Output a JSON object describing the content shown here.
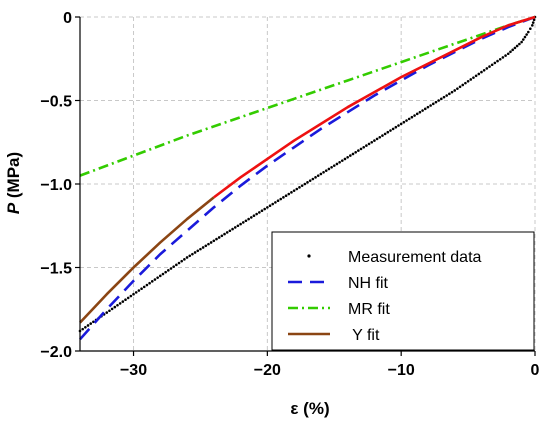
{
  "chart_data": {
    "type": "line",
    "xlabel": "ε (%)",
    "ylabel_italic": "P",
    "ylabel_unit": " (MPa)",
    "xlim": [
      -34,
      0
    ],
    "ylim": [
      -2.0,
      0
    ],
    "x_ticks": [
      -30,
      -20,
      -10,
      0
    ],
    "x_tick_labels": [
      "−30",
      "−20",
      "−10",
      "0"
    ],
    "y_ticks": [
      0,
      -0.5,
      -1.0,
      -1.5,
      -2.0
    ],
    "y_tick_labels": [
      "0",
      "−0.5",
      "−1.0",
      "−1.5",
      "−2.0"
    ],
    "grid": true,
    "legend_position": "bottom-right",
    "series": [
      {
        "name": "Measurement data",
        "style": "dotted-markers",
        "color": "#000000",
        "x": [
          -34,
          -32,
          -30,
          -28,
          -26,
          -24,
          -22,
          -20,
          -18,
          -16,
          -14,
          -12,
          -10,
          -8,
          -6,
          -4,
          -2,
          -1,
          -0.5,
          -0.2,
          0
        ],
        "y": [
          -1.88,
          -1.77,
          -1.66,
          -1.55,
          -1.44,
          -1.34,
          -1.24,
          -1.14,
          -1.04,
          -0.94,
          -0.84,
          -0.74,
          -0.64,
          -0.54,
          -0.44,
          -0.33,
          -0.22,
          -0.15,
          -0.09,
          -0.05,
          0
        ]
      },
      {
        "name": "NH fit",
        "style": "dashed",
        "color": "#1a1adb",
        "x": [
          -34,
          -32,
          -30,
          -28,
          -26,
          -24,
          -22,
          -20,
          -18,
          -16,
          -14,
          -12,
          -10,
          -8,
          -6,
          -4,
          -2,
          0
        ],
        "y": [
          -1.93,
          -1.75,
          -1.58,
          -1.42,
          -1.28,
          -1.14,
          -1.01,
          -0.89,
          -0.78,
          -0.67,
          -0.57,
          -0.47,
          -0.38,
          -0.29,
          -0.21,
          -0.13,
          -0.06,
          0
        ]
      },
      {
        "name": "MR fit",
        "style": "dash-dot",
        "color": "#33cc00",
        "x": [
          -34,
          -30,
          -26,
          -22,
          -18,
          -14,
          -10,
          -6,
          -2,
          0
        ],
        "y": [
          -0.95,
          -0.83,
          -0.71,
          -0.6,
          -0.49,
          -0.38,
          -0.27,
          -0.16,
          -0.05,
          0
        ]
      },
      {
        "name": "Y fit",
        "style": "solid",
        "color": "#8b4513",
        "x": [
          -34,
          -32,
          -30,
          -28,
          -26,
          -24
        ],
        "y": [
          -1.83,
          -1.66,
          -1.5,
          -1.35,
          -1.21,
          -1.08
        ]
      },
      {
        "name": "",
        "style": "solid",
        "color": "#ee1111",
        "x": [
          -24,
          -22,
          -20,
          -18,
          -16,
          -14,
          -12,
          -10,
          -8,
          -6,
          -4,
          -2,
          0
        ],
        "y": [
          -1.08,
          -0.96,
          -0.85,
          -0.74,
          -0.64,
          -0.54,
          -0.45,
          -0.36,
          -0.28,
          -0.2,
          -0.12,
          -0.05,
          0
        ]
      }
    ],
    "legend": [
      {
        "label": "Measurement data",
        "style": "dotted-markers",
        "color": "#000000"
      },
      {
        "label": "NH fit",
        "style": "dashed",
        "color": "#1a1adb"
      },
      {
        "label": "MR fit",
        "style": "dash-dot",
        "color": "#33cc00"
      },
      {
        "label": " Y fit",
        "style": "solid",
        "color": "#8b4513"
      }
    ]
  }
}
